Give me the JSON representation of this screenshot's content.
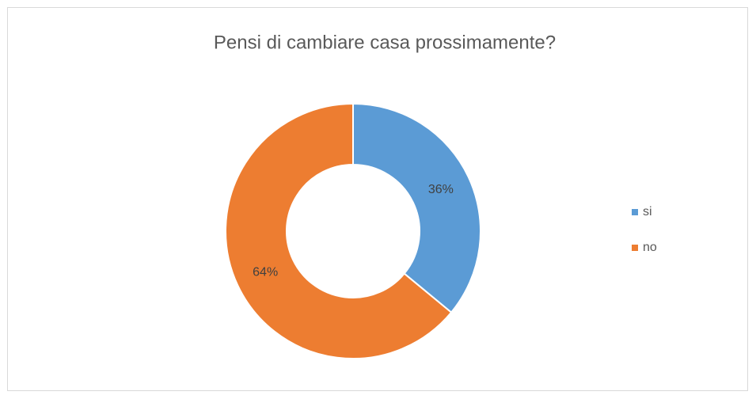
{
  "chart_data": {
    "type": "donut",
    "title": "Pensi di cambiare casa prossimamente?",
    "categories": [
      "si",
      "no"
    ],
    "values": [
      36,
      64
    ],
    "value_labels": [
      "36%",
      "64%"
    ],
    "colors": [
      "#5b9bd5",
      "#ed7d31"
    ],
    "legend": "right"
  }
}
